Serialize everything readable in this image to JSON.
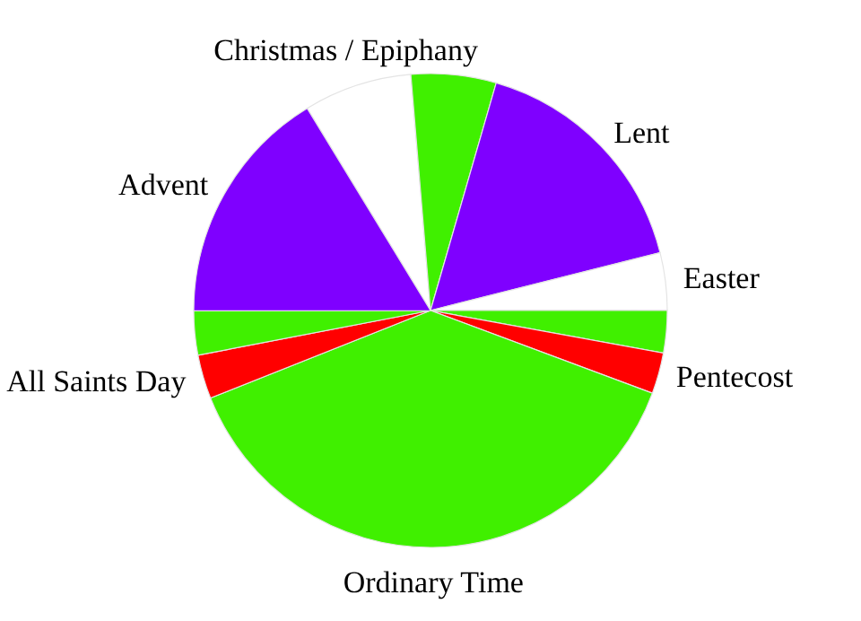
{
  "chart_data": {
    "type": "pie",
    "categories": [
      "Christmas / Epiphany",
      null,
      "Lent",
      "Easter",
      null,
      "Pentecost",
      "Ordinary Time",
      "All Saints Day",
      null,
      "Advent"
    ],
    "values": [
      7.4,
      5.8,
      16.6,
      3.9,
      2.9,
      2.8,
      38.3,
      3.0,
      3.0,
      16.3
    ],
    "colors": [
      "#ffffff",
      "#40f000",
      "#7f00ff",
      "#ffffff",
      "#40f000",
      "#ff0000",
      "#40f000",
      "#ff0000",
      "#40f000",
      "#7f00ff"
    ]
  }
}
